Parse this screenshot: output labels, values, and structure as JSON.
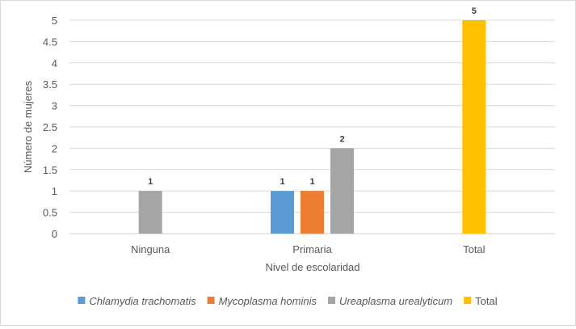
{
  "chart_data": {
    "type": "bar",
    "categories": [
      "Ninguna",
      "Primaria",
      "Total"
    ],
    "series": [
      {
        "name": "Chlamydia trachomatis",
        "italic": true,
        "color": "#5B9BD5",
        "values": [
          null,
          1,
          null
        ]
      },
      {
        "name": "Mycoplasma hominis",
        "italic": true,
        "color": "#ED7D31",
        "values": [
          null,
          1,
          null
        ]
      },
      {
        "name": "Ureaplasma urealyticum",
        "italic": true,
        "color": "#A5A5A5",
        "values": [
          1,
          2,
          null
        ]
      },
      {
        "name": "Total",
        "italic": false,
        "color": "#FFC000",
        "values": [
          null,
          null,
          5
        ]
      }
    ],
    "xlabel": "Nivel de escolaridad",
    "ylabel": "Número de mujeres",
    "ylim": [
      0,
      5
    ],
    "yticks": [
      "0",
      "0.5",
      "1",
      "1.5",
      "2",
      "2.5",
      "3",
      "3.5",
      "4",
      "4.5",
      "5"
    ],
    "grid": true,
    "legend_position": "bottom",
    "data_labels": true
  }
}
